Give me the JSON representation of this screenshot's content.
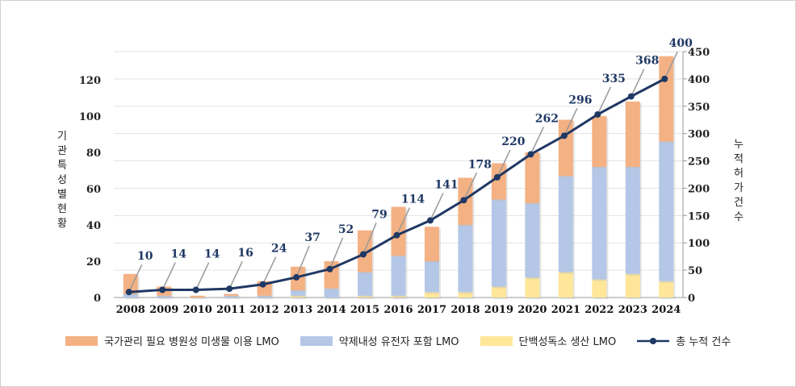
{
  "chart_data": {
    "type": "bar",
    "categories": [
      "2008",
      "2009",
      "2010",
      "2011",
      "2012",
      "2013",
      "2014",
      "2015",
      "2016",
      "2017",
      "2018",
      "2019",
      "2020",
      "2021",
      "2022",
      "2023",
      "2024"
    ],
    "ylabel": "기관 특성별 현황",
    "y2label": "누적 허가 건수",
    "ylim": [
      0,
      135
    ],
    "y2lim": [
      0,
      450
    ],
    "yticks": [
      0,
      20,
      40,
      60,
      80,
      100,
      120
    ],
    "y2ticks": [
      0,
      50,
      100,
      150,
      200,
      250,
      300,
      350,
      400,
      450
    ],
    "grid": true,
    "legend": "bottom",
    "series": [
      {
        "name": "단백성독소 생산 LMO",
        "type": "bar",
        "color": "#FFE699",
        "values": [
          0,
          0,
          0,
          0,
          0,
          1,
          0,
          1,
          1,
          3,
          3,
          6,
          11,
          14,
          10,
          13,
          9
        ]
      },
      {
        "name": "약제내성 유전자 포함 LMO",
        "type": "bar",
        "color": "#B4C7E7",
        "values": [
          2,
          1,
          0,
          1,
          1,
          3,
          5,
          13,
          22,
          17,
          37,
          48,
          41,
          53,
          62,
          59,
          77
        ]
      },
      {
        "name": "국가관리 필요 병원성 미생물 이용 LMO",
        "type": "bar",
        "color": "#F4B183",
        "values": [
          11,
          5,
          1,
          1,
          8,
          13,
          15,
          23,
          27,
          19,
          26,
          20,
          28,
          31,
          28,
          36,
          47
        ]
      },
      {
        "name": "총 누적 건수",
        "type": "line",
        "axis": "right",
        "color": "#1F3864",
        "values": [
          10,
          14,
          14,
          16,
          24,
          37,
          52,
          79,
          114,
          141,
          178,
          220,
          262,
          296,
          335,
          368,
          400
        ]
      }
    ]
  },
  "legend_order": [
    2,
    1,
    0,
    3
  ]
}
